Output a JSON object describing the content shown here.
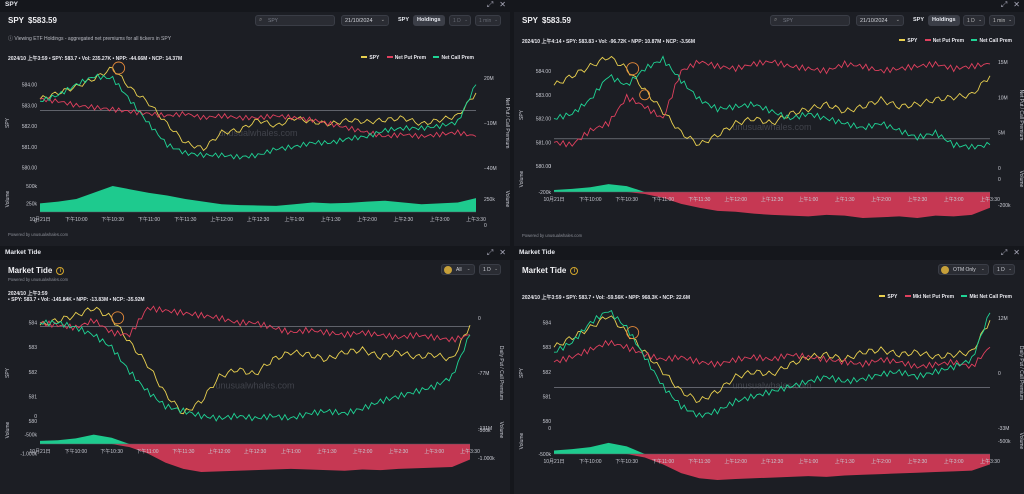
{
  "colors": {
    "spy": "#e9d04f",
    "put": "#e0405e",
    "call": "#1fd495",
    "vol_pos": "#1fd495",
    "vol_neg": "#d03a56",
    "marker": "#e58a3a"
  },
  "watermark": "unusualwhales.com",
  "panels": [
    {
      "bar_title": "SPY",
      "ticker": "SPY",
      "price": "$583.59",
      "search_placeholder": "SPY",
      "date": "21/10/2024",
      "tab_label": "SPY",
      "holdings_label": "Holdings",
      "interval": "1 D",
      "resolution": "1 min",
      "info": "Viewing ETF Holdings - aggregated net premiums for all tickers in SPY",
      "stats": "2024/10 上午3:59 • SPY: 583.7 • Vol: 235.27K • NPP: -44.66M • NCP: 14.37M",
      "legend": [
        "SPY",
        "Net Put Prem",
        "Net Call Prem"
      ],
      "powered": "Powered by unusualwhales.com",
      "left_axis_label": "SPY",
      "right_axis_label": "Net Put / Call Premium",
      "volume_label": "Volume",
      "chart_data": {
        "type": "line",
        "y_ticks": [
          "584.00",
          "583.00",
          "582.00",
          "581.00",
          "580.00"
        ],
        "y_ticks_numeric": [
          584,
          583,
          582,
          581,
          580
        ],
        "y_range": [
          579.5,
          584.8
        ],
        "right_ticks": [
          "20M",
          "−10M",
          "−40M"
        ],
        "vol_ticks_left": [
          "500k",
          "250k",
          "0"
        ],
        "vol_ticks_right": [
          "250k",
          "0"
        ],
        "x_ticks": [
          "10月21日",
          "下午10:00",
          "下午10:30",
          "下午11:00",
          "下午11:30",
          "上午12:00",
          "上午12:30",
          "上午1:00",
          "上午1:30",
          "上午2:00",
          "上午2:30",
          "上午3:00",
          "上午3:30"
        ],
        "series": [
          {
            "name": "SPY",
            "points": [
              583.3,
              583.6,
              583.9,
              584.3,
              584.8,
              583.8,
              583.1,
              582.1,
              581.2,
              580.9,
              581.7,
              581.8,
              582.3,
              582.0,
              582.4,
              582.2,
              582.1,
              582.3,
              582.2,
              582.3,
              582.4,
              582.1,
              582.3,
              582.5,
              583.6
            ]
          },
          {
            "name": "Net Put Prem",
            "points": [
              583.3,
              583.2,
              583.0,
              582.9,
              582.8,
              582.7,
              582.6,
              582.5,
              582.6,
              582.4,
              582.5,
              582.4,
              582.4,
              582.5,
              582.4,
              582.3,
              582.1,
              581.9,
              581.7,
              581.5,
              581.6,
              581.5,
              581.6,
              581.7,
              581.5
            ]
          },
          {
            "name": "Net Call Prem",
            "points": [
              583.2,
              583.5,
              584.0,
              584.4,
              584.3,
              583.2,
              582.1,
              581.1,
              580.7,
              580.6,
              580.6,
              580.5,
              580.6,
              580.9,
              581.0,
              581.2,
              581.2,
              581.4,
              581.5,
              581.8,
              581.9,
              581.9,
              582.0,
              582.2,
              584.0
            ]
          }
        ],
        "volume": [
          20,
          24,
          30,
          45,
          60,
          52,
          44,
          38,
          30,
          24,
          18,
          16,
          15,
          14,
          18,
          22,
          20,
          21,
          24,
          26,
          22,
          18,
          20,
          22,
          32
        ]
      }
    },
    {
      "bar_title": "",
      "ticker": "SPY",
      "price": "$583.59",
      "search_placeholder": "SPY",
      "date": "21/10/2024",
      "tab_label": "SPY",
      "holdings_label": "Holdings",
      "interval": "1 D",
      "resolution": "1 min",
      "info": "",
      "stats": "2024/10 上午4:14 • SPY: 583.83 • Vol: -96.72K • NPP: 10.87M • NCP: -3.56M",
      "legend": [
        "SPY",
        "Net Put Prem",
        "Net Call Prem"
      ],
      "powered": "Powered by unusualwhales.com",
      "left_axis_label": "SPY",
      "right_axis_label": "Net Put / Call Premium",
      "volume_label": "Volume",
      "chart_data": {
        "type": "line",
        "y_ticks": [
          "584.00",
          "583.00",
          "582.00",
          "581.00",
          "580.00"
        ],
        "y_ticks_numeric": [
          584,
          583,
          582,
          581,
          580
        ],
        "y_range": [
          579.5,
          584.8
        ],
        "right_ticks": [
          "15M",
          "10M",
          "5M",
          "0"
        ],
        "vol_ticks_left": [
          "0",
          "-200k"
        ],
        "vol_ticks_right": [
          "0",
          "-200k"
        ],
        "x_ticks": [
          "10月21日",
          "下午10:00",
          "下午10:30",
          "下午11:00",
          "下午11:30",
          "上午12:00",
          "上午12:30",
          "上午1:00",
          "上午1:30",
          "上午2:00",
          "上午2:30",
          "上午3:00",
          "上午3:30"
        ],
        "series": [
          {
            "name": "SPY",
            "points": [
              583.4,
              583.8,
              584.2,
              584.6,
              584.1,
              583.2,
              582.3,
              581.4,
              580.9,
              581.3,
              581.8,
              582.0,
              581.8,
              582.2,
              582.4,
              582.6,
              582.3,
              582.5,
              582.8,
              582.5,
              582.6,
              582.8,
              582.9,
              583.0,
              583.8
            ]
          },
          {
            "name": "Net Put Prem",
            "points": [
              581.0,
              580.9,
              581.5,
              581.8,
              582.9,
              582.5,
              582.0,
              584.0,
              584.4,
              584.2,
              584.1,
              584.3,
              584.4,
              584.2,
              584.1,
              584.0,
              584.3,
              584.2,
              584.0,
              584.1,
              584.2,
              584.3,
              584.1,
              584.2,
              584.3
            ]
          },
          {
            "name": "Net Call Prem",
            "points": [
              582.0,
              582.2,
              582.8,
              583.8,
              583.4,
              584.1,
              584.5,
              583.6,
              582.8,
              582.4,
              582.5,
              582.6,
              582.3,
              582.0,
              582.2,
              582.0,
              581.8,
              581.6,
              581.8,
              581.5,
              581.2,
              581.4,
              580.9,
              580.8,
              580.9
            ]
          }
        ],
        "volume": [
          5,
          8,
          12,
          20,
          15,
          -5,
          -15,
          -30,
          -40,
          -48,
          -50,
          -55,
          -58,
          -60,
          -62,
          -58,
          -60,
          -66,
          -64,
          -62,
          -66,
          -60,
          -62,
          -58,
          -40
        ]
      }
    },
    {
      "bar_title": "Market Tide",
      "title": "Market Tide",
      "powered": "Powered by unusualwhales.com",
      "filter": "All",
      "interval": "1 D",
      "stats_date": "2024/10 上午3:59",
      "stats": "• SPY: 583.7 • Vol: -145.84K • NPP: -13.83M • NCP: -35.92M",
      "legend": [],
      "left_axis_label": "SPY",
      "right_axis_label": "Daily Put / Call Premium",
      "volume_label": "Volume",
      "chart_data": {
        "type": "line",
        "y_ticks": [
          "584",
          "583",
          "582",
          "581",
          "580"
        ],
        "y_ticks_numeric": [
          584,
          583,
          582,
          581,
          580
        ],
        "y_range": [
          579.3,
          584.6
        ],
        "right_ticks": [
          "0",
          "-77M",
          "-131M"
        ],
        "vol_ticks_left": [
          "0",
          "-500k",
          "-1.000k"
        ],
        "vol_ticks_right": [
          "-500k",
          "-1.000k"
        ],
        "x_ticks": [
          "10月21日",
          "下午10:00",
          "下午10:30",
          "下午11:00",
          "下午11:30",
          "上午12:00",
          "上午12:30",
          "上午1:00",
          "上午1:30",
          "上午2:00",
          "上午2:30",
          "上午3:00",
          "上午3:30"
        ],
        "series": [
          {
            "name": "SPY",
            "points": [
              583.9,
              584.1,
              584.3,
              584.6,
              584.2,
              583.2,
              582.3,
              581.1,
              580.3,
              580.8,
              581.8,
              582.1,
              581.9,
              582.5,
              582.8,
              582.7,
              582.5,
              582.8,
              582.9,
              582.6,
              582.8,
              582.6,
              582.7,
              582.5,
              583.9
            ]
          },
          {
            "name": "Net Put Prem",
            "points": [
              584.0,
              583.9,
              583.8,
              584.1,
              583.6,
              583.5,
              584.6,
              584.5,
              584.4,
              584.3,
              584.2,
              584.0,
              584.0,
              583.8,
              583.6,
              583.7,
              583.6,
              583.5,
              583.6,
              583.5,
              583.4,
              583.5,
              583.4,
              583.3,
              583.5
            ]
          },
          {
            "name": "Net Call Prem",
            "points": [
              584.0,
              584.0,
              583.8,
              583.5,
              583.0,
              582.0,
              581.2,
              580.6,
              580.4,
              580.2,
              580.1,
              580.2,
              580.1,
              580.2,
              580.1,
              580.3,
              580.4,
              580.3,
              580.5,
              580.8,
              581.0,
              581.2,
              581.4,
              581.8,
              583.5
            ]
          }
        ],
        "volume": [
          10,
          12,
          18,
          30,
          20,
          -10,
          -30,
          -60,
          -80,
          -90,
          -88,
          -86,
          -84,
          -82,
          -80,
          -82,
          -84,
          -86,
          -82,
          -84,
          -80,
          -78,
          -76,
          -74,
          -50
        ]
      }
    },
    {
      "bar_title": "Market Tide",
      "title": "Market Tide",
      "powered": "Powered by unusualwhales.com",
      "filter": "OTM Only",
      "interval": "1 D",
      "stats": "2024/10 上午3:59 • SPY: 583.7 • Vol: -59.56K • NPP: 968.3K • NCP: 22.6M",
      "legend": [
        "SPY",
        "Mkt Net Put Prem",
        "Mkt Net Call Prem"
      ],
      "left_axis_label": "SPY",
      "right_axis_label": "Daily Put / Call Premium",
      "volume_label": "Volume",
      "chart_data": {
        "type": "line",
        "y_ticks": [
          "584",
          "583",
          "582",
          "581",
          "580"
        ],
        "y_ticks_numeric": [
          584,
          583,
          582,
          581,
          580
        ],
        "y_range": [
          579.3,
          584.6
        ],
        "right_ticks": [
          "12M",
          "0",
          "-33M"
        ],
        "vol_ticks_left": [
          "0",
          "-500k"
        ],
        "vol_ticks_right": [
          "-500k"
        ],
        "x_ticks": [
          "10月21日",
          "下午10:00",
          "下午10:30",
          "下午11:00",
          "下午11:30",
          "上午12:00",
          "上午12:30",
          "上午1:00",
          "上午1:30",
          "上午2:00",
          "上午2:30",
          "上午3:00",
          "上午3:30"
        ],
        "series": [
          {
            "name": "SPY",
            "points": [
              583.0,
              583.4,
              583.8,
              584.3,
              583.6,
              582.8,
              582.0,
              581.2,
              580.8,
              581.2,
              581.8,
              582.0,
              581.9,
              582.3,
              582.6,
              582.7,
              582.5,
              582.8,
              582.9,
              582.7,
              582.8,
              582.6,
              582.7,
              582.8,
              584.1
            ]
          },
          {
            "name": "Mkt Net Put Prem",
            "points": [
              582.4,
              582.6,
              582.9,
              583.2,
              583.0,
              582.7,
              582.5,
              582.6,
              582.4,
              582.3,
              582.5,
              582.6,
              582.5,
              582.7,
              582.6,
              582.5,
              582.4,
              582.3,
              582.5,
              582.4,
              582.2,
              582.3,
              582.4,
              582.2,
              583.0
            ]
          },
          {
            "name": "Mkt Net Call Prem",
            "points": [
              582.8,
              583.2,
              584.0,
              584.5,
              583.8,
              582.6,
              581.4,
              580.6,
              580.2,
              580.4,
              580.8,
              581.0,
              581.2,
              581.4,
              581.6,
              581.8,
              581.6,
              581.7,
              581.9,
              582.0,
              581.8,
              582.0,
              582.2,
              582.5,
              584.4
            ]
          }
        ],
        "volume": [
          10,
          14,
          20,
          32,
          22,
          -10,
          -30,
          -55,
          -70,
          -75,
          -72,
          -70,
          -68,
          -66,
          -64,
          -66,
          -62,
          -60,
          -58,
          -56,
          -54,
          -52,
          -50,
          -48,
          -30
        ]
      }
    }
  ]
}
